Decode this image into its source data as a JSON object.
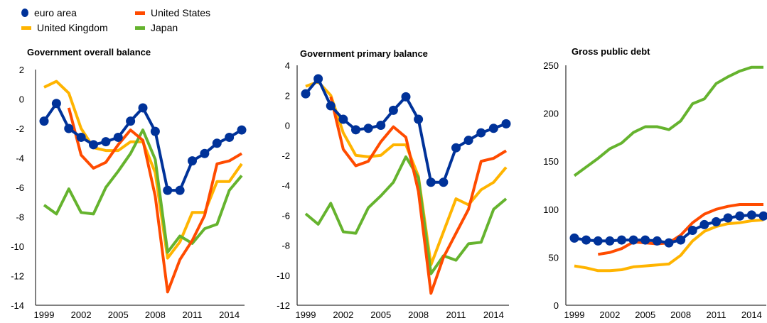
{
  "legend": {
    "items": [
      {
        "label": "euro area",
        "color": "#003299",
        "marker": "dot"
      },
      {
        "label": "United States",
        "color": "#ff4b00",
        "marker": "line"
      },
      {
        "label": "United Kingdom",
        "color": "#ffb400",
        "marker": "line"
      },
      {
        "label": "Japan",
        "color": "#65b32e",
        "marker": "line"
      }
    ]
  },
  "chart_data": [
    {
      "type": "line",
      "title": "Government overall balance",
      "ylim": [
        -14,
        2
      ],
      "yticks": [
        2,
        0,
        -2,
        -4,
        -6,
        -8,
        -10,
        -12,
        -14
      ],
      "xlim": [
        1999,
        2015
      ],
      "xticks": [
        1999,
        2002,
        2005,
        2008,
        2011,
        2014
      ],
      "series": [
        {
          "name": "United Kingdom",
          "color": "#ffb400",
          "x": [
            1999,
            2000,
            2001,
            2002,
            2003,
            2004,
            2005,
            2006,
            2007,
            2008,
            2009,
            2010,
            2011,
            2012,
            2013,
            2014,
            2015
          ],
          "y": [
            0.8,
            1.2,
            0.4,
            -2.0,
            -3.3,
            -3.5,
            -3.5,
            -2.9,
            -2.9,
            -5.0,
            -10.8,
            -9.7,
            -7.7,
            -7.7,
            -5.6,
            -5.6,
            -4.4
          ]
        },
        {
          "name": "Japan",
          "color": "#65b32e",
          "x": [
            1999,
            2000,
            2001,
            2002,
            2003,
            2004,
            2005,
            2006,
            2007,
            2008,
            2009,
            2010,
            2011,
            2012,
            2013,
            2014,
            2015
          ],
          "y": [
            -7.2,
            -7.8,
            -6.1,
            -7.7,
            -7.8,
            -6.0,
            -4.9,
            -3.7,
            -2.1,
            -4.1,
            -10.4,
            -9.3,
            -9.8,
            -8.8,
            -8.5,
            -6.2,
            -5.2
          ]
        },
        {
          "name": "United States",
          "color": "#ff4b00",
          "x": [
            2001,
            2002,
            2003,
            2004,
            2005,
            2006,
            2007,
            2008,
            2009,
            2010,
            2011,
            2012,
            2013,
            2014,
            2015
          ],
          "y": [
            -0.6,
            -3.8,
            -4.7,
            -4.3,
            -3.1,
            -2.1,
            -2.8,
            -6.6,
            -13.1,
            -10.9,
            -9.6,
            -7.9,
            -4.4,
            -4.2,
            -3.7
          ]
        },
        {
          "name": "euro area",
          "color": "#003299",
          "markers": true,
          "x": [
            1999,
            2000,
            2001,
            2002,
            2003,
            2004,
            2005,
            2006,
            2007,
            2008,
            2009,
            2010,
            2011,
            2012,
            2013,
            2014,
            2015
          ],
          "y": [
            -1.5,
            -0.3,
            -2.0,
            -2.6,
            -3.1,
            -2.9,
            -2.6,
            -1.5,
            -0.6,
            -2.2,
            -6.2,
            -6.2,
            -4.2,
            -3.7,
            -3.0,
            -2.6,
            -2.1
          ]
        }
      ]
    },
    {
      "type": "line",
      "title": "Government primary balance",
      "ylim": [
        -12,
        4
      ],
      "yticks": [
        4,
        2,
        0,
        -2,
        -4,
        -6,
        -8,
        -10,
        -12
      ],
      "xlim": [
        1999,
        2015
      ],
      "xticks": [
        1999,
        2002,
        2005,
        2008,
        2011,
        2014
      ],
      "series": [
        {
          "name": "United Kingdom",
          "color": "#ffb400",
          "x": [
            1999,
            2000,
            2001,
            2002,
            2003,
            2004,
            2005,
            2006,
            2007,
            2008,
            2009,
            2010,
            2011,
            2012,
            2013,
            2014,
            2015
          ],
          "y": [
            2.6,
            2.9,
            2.0,
            -0.5,
            -2.0,
            -2.1,
            -2.0,
            -1.3,
            -1.3,
            -3.4,
            -9.3,
            -7.1,
            -4.9,
            -5.3,
            -4.3,
            -3.8,
            -2.8
          ]
        },
        {
          "name": "Japan",
          "color": "#65b32e",
          "x": [
            1999,
            2000,
            2001,
            2002,
            2003,
            2004,
            2005,
            2006,
            2007,
            2008,
            2009,
            2010,
            2011,
            2012,
            2013,
            2014,
            2015
          ],
          "y": [
            -5.9,
            -6.6,
            -5.2,
            -7.1,
            -7.2,
            -5.5,
            -4.7,
            -3.8,
            -2.1,
            -3.5,
            -9.9,
            -8.7,
            -9.0,
            -7.9,
            -7.8,
            -5.6,
            -4.9
          ]
        },
        {
          "name": "United States",
          "color": "#ff4b00",
          "x": [
            2001,
            2002,
            2003,
            2004,
            2005,
            2006,
            2007,
            2008,
            2009,
            2010,
            2011,
            2012,
            2013,
            2014,
            2015
          ],
          "y": [
            1.9,
            -1.6,
            -2.7,
            -2.4,
            -1.1,
            -0.1,
            -0.8,
            -4.4,
            -11.2,
            -8.8,
            -7.2,
            -5.6,
            -2.4,
            -2.2,
            -1.7
          ]
        },
        {
          "name": "euro area",
          "color": "#003299",
          "markers": true,
          "x": [
            1999,
            2000,
            2001,
            2002,
            2003,
            2004,
            2005,
            2006,
            2007,
            2008,
            2009,
            2010,
            2011,
            2012,
            2013,
            2014,
            2015
          ],
          "y": [
            2.1,
            3.1,
            1.3,
            0.4,
            -0.3,
            -0.2,
            0.0,
            1.0,
            1.9,
            0.4,
            -3.8,
            -3.8,
            -1.5,
            -1.0,
            -0.5,
            -0.2,
            0.1
          ]
        }
      ]
    },
    {
      "type": "line",
      "title": "Gross public debt",
      "ylim": [
        0,
        250
      ],
      "yticks": [
        250,
        200,
        150,
        100,
        50,
        0
      ],
      "xlim": [
        1999,
        2015
      ],
      "xticks": [
        1999,
        2002,
        2005,
        2008,
        2011,
        2014
      ],
      "series": [
        {
          "name": "United Kingdom",
          "color": "#ffb400",
          "x": [
            1999,
            2000,
            2001,
            2002,
            2003,
            2004,
            2005,
            2006,
            2007,
            2008,
            2009,
            2010,
            2011,
            2012,
            2013,
            2014,
            2015
          ],
          "y": [
            41,
            39,
            36,
            36,
            37,
            40,
            41,
            42,
            43,
            52,
            67,
            77,
            82,
            85,
            86,
            88,
            89
          ]
        },
        {
          "name": "Japan",
          "color": "#65b32e",
          "x": [
            1999,
            2000,
            2001,
            2002,
            2003,
            2004,
            2005,
            2006,
            2007,
            2008,
            2009,
            2010,
            2011,
            2012,
            2013,
            2014,
            2015
          ],
          "y": [
            135,
            144,
            153,
            163,
            169,
            180,
            186,
            186,
            183,
            192,
            210,
            215,
            231,
            238,
            244,
            248,
            248
          ]
        },
        {
          "name": "United States",
          "color": "#ff4b00",
          "x": [
            2001,
            2002,
            2003,
            2004,
            2005,
            2006,
            2007,
            2008,
            2009,
            2010,
            2011,
            2012,
            2013,
            2014,
            2015
          ],
          "y": [
            53,
            55,
            59,
            66,
            65,
            64,
            65,
            73,
            86,
            95,
            100,
            103,
            105,
            105,
            105
          ]
        },
        {
          "name": "euro area",
          "color": "#003299",
          "markers": true,
          "x": [
            1999,
            2000,
            2001,
            2002,
            2003,
            2004,
            2005,
            2006,
            2007,
            2008,
            2009,
            2010,
            2011,
            2012,
            2013,
            2014,
            2015
          ],
          "y": [
            70,
            68,
            67,
            67,
            68,
            68,
            68,
            67,
            65,
            68,
            78,
            84,
            87,
            91,
            93,
            94,
            93
          ]
        }
      ]
    }
  ]
}
